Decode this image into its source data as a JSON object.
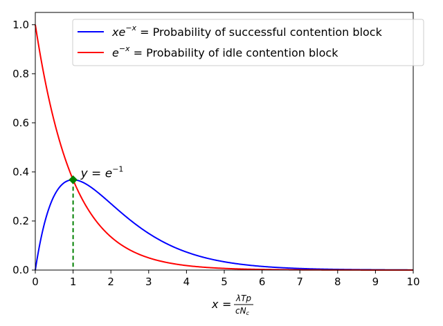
{
  "chart_data": {
    "type": "line",
    "xlim": [
      0,
      10
    ],
    "ylim": [
      0,
      1.05
    ],
    "x_ticks": [
      0,
      1,
      2,
      3,
      4,
      5,
      6,
      7,
      8,
      9,
      10
    ],
    "y_ticks": [
      0.0,
      0.2,
      0.4,
      0.6,
      0.8,
      1.0
    ],
    "y_tick_labels": [
      "0.0",
      "0.2",
      "0.4",
      "0.6",
      "0.8",
      "1.0"
    ],
    "grid": false,
    "legend_position": "top-right",
    "xlabel": {
      "lhs": "x",
      "eq": "=",
      "num": "λTp",
      "den": "cN",
      "den_sub": "c"
    },
    "series": [
      {
        "name": "Probability of successful contention block",
        "legend_math": {
          "base": "xe",
          "sup": "−x"
        },
        "legend_text": " = Probability of successful contention block",
        "function": "x*exp(-x)",
        "color": "#0000ff",
        "x": [
          0,
          0.25,
          0.5,
          0.75,
          1,
          1.5,
          2,
          2.5,
          3,
          3.5,
          4,
          5,
          6,
          7,
          8,
          9,
          10
        ],
        "y": [
          0,
          0.195,
          0.303,
          0.354,
          0.368,
          0.335,
          0.271,
          0.205,
          0.149,
          0.106,
          0.073,
          0.034,
          0.015,
          0.006,
          0.003,
          0.001,
          0.0005
        ]
      },
      {
        "name": "Probability of idle contention block",
        "legend_math": {
          "base": "e",
          "sup": "−x"
        },
        "legend_text": " = Probability of idle contention block",
        "function": "exp(-x)",
        "color": "#ff0000",
        "x": [
          0,
          0.25,
          0.5,
          0.75,
          1,
          1.5,
          2,
          2.5,
          3,
          3.5,
          4,
          5,
          6,
          7,
          8,
          9,
          10
        ],
        "y": [
          1,
          0.779,
          0.607,
          0.472,
          0.368,
          0.223,
          0.135,
          0.082,
          0.05,
          0.03,
          0.018,
          0.007,
          0.002,
          0.001,
          0.0003,
          0.0001,
          5e-05
        ]
      }
    ],
    "intersection": {
      "x": 1,
      "y": 0.368,
      "color": "#008000",
      "label_math": {
        "lhs": "y",
        "eq": " = ",
        "base": "e",
        "sup": "−1"
      }
    }
  }
}
